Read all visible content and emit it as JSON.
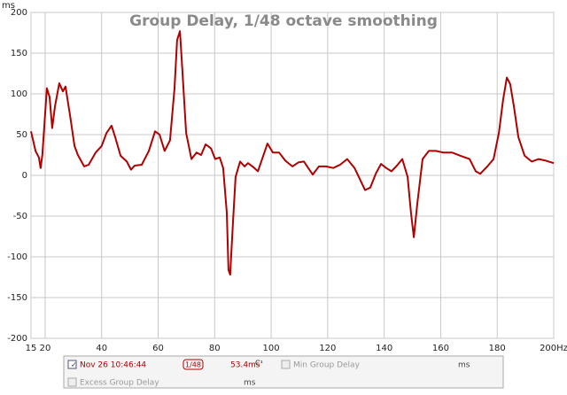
{
  "chart_data": {
    "type": "line",
    "title": "Group Delay, 1/48 octave smoothing",
    "y_unit": "ms",
    "xlim": [
      15,
      200
    ],
    "ylim": [
      -200,
      200
    ],
    "xticks": [
      15,
      20,
      40,
      60,
      80,
      100,
      120,
      140,
      160,
      180,
      {
        "value": 200,
        "label": "200Hz"
      }
    ],
    "yticks": [
      -200,
      -150,
      -100,
      -50,
      0,
      50,
      100,
      150,
      200
    ],
    "grid": true,
    "series": [
      {
        "name": "Nov 26 10:46:44",
        "color": "#b00000",
        "x": [
          15,
          16.6,
          17.8,
          18.4,
          19,
          20.6,
          21.6,
          22.5,
          23.5,
          25,
          26.3,
          27.2,
          28.8,
          30.4,
          31.6,
          33.8,
          35.4,
          37.9,
          40,
          41.7,
          43.5,
          44.8,
          46.7,
          48.9,
          50.4,
          51.7,
          54.2,
          56.7,
          58.9,
          60.5,
          62.3,
          64.2,
          65.8,
          66.7,
          67.7,
          68.6,
          69.9,
          71.8,
          73.6,
          75.2,
          76.8,
          78.7,
          80.2,
          81.8,
          83,
          84.3,
          84.9,
          85.5,
          86.5,
          87.4,
          89,
          90.6,
          91.8,
          93.4,
          95.3,
          96.8,
          98.7,
          100.6,
          102.8,
          105,
          107.5,
          109.7,
          111.6,
          113.1,
          114.7,
          116.9,
          119.4,
          122,
          124.4,
          126.9,
          129.5,
          131.3,
          133.2,
          135.1,
          137,
          138.9,
          140.7,
          142.6,
          144.5,
          146.4,
          148.3,
          149.5,
          150.5,
          151.7,
          153.6,
          155.8,
          158.3,
          160.8,
          164,
          167,
          170.2,
          172.4,
          174,
          176.5,
          178.7,
          180.6,
          182.1,
          183.4,
          184.6,
          185.9,
          187.5,
          189.7,
          192.2,
          194.7,
          197.2,
          200
        ],
        "values": [
          54,
          30,
          22,
          9,
          25,
          107,
          96,
          58,
          85,
          113,
          103,
          109,
          74,
          36,
          25,
          11,
          13,
          28,
          36,
          52,
          61,
          47,
          24,
          17,
          7,
          12,
          13,
          30,
          54,
          50,
          30,
          43,
          107,
          166,
          177,
          128,
          52,
          20,
          28,
          25,
          38,
          33,
          20,
          22,
          9,
          -46,
          -116,
          -122,
          -57,
          -2,
          17,
          11,
          15,
          11,
          5,
          20,
          39,
          28,
          28,
          18,
          11,
          16,
          17,
          9,
          1,
          11,
          11,
          9,
          13,
          20,
          9,
          -4,
          -18,
          -15,
          2,
          14,
          9,
          5,
          12,
          20,
          -2,
          -46,
          -76,
          -35,
          20,
          30,
          30,
          28,
          28,
          24,
          20,
          5,
          2,
          11,
          20,
          52,
          93,
          120,
          112,
          85,
          47,
          24,
          17,
          20,
          18,
          15
        ]
      }
    ]
  },
  "panel": {
    "smoothing": "1/48",
    "value": "53.4ms",
    "marker": "C¹",
    "min_label": "Min Group Delay",
    "min_unit": "ms",
    "excess_label": "Excess Group Delay",
    "excess_unit": "ms"
  }
}
